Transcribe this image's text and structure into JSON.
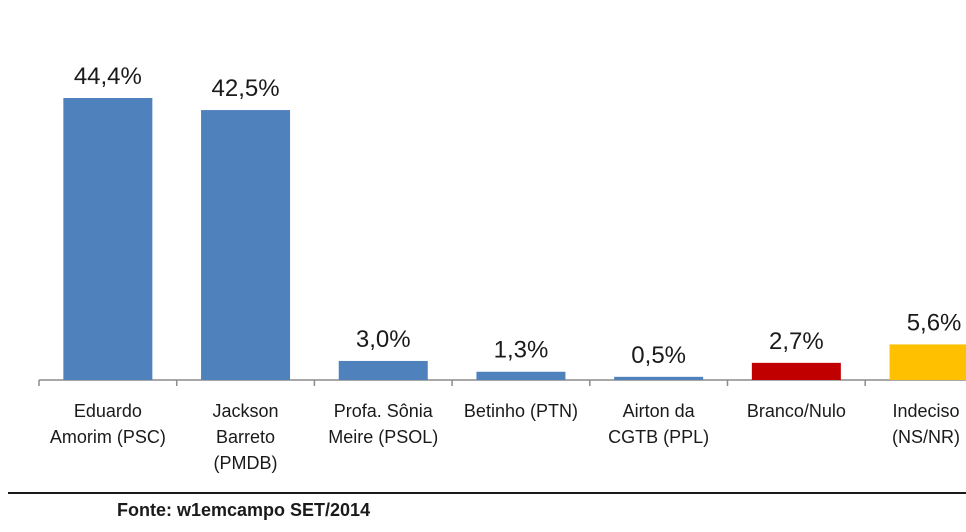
{
  "chart_data": {
    "type": "bar",
    "categories": [
      [
        "Eduardo",
        "Amorim (PSC)"
      ],
      [
        "Jackson",
        "Barreto",
        "(PMDB)"
      ],
      [
        "Profa. Sônia",
        "Meire (PSOL)"
      ],
      [
        "Betinho (PTN)"
      ],
      [
        "Airton da",
        "CGTB (PPL)"
      ],
      [
        "Branco/Nulo"
      ],
      [
        "Indeciso",
        "(NS/NR)"
      ]
    ],
    "values": [
      44.4,
      42.5,
      3.0,
      1.3,
      0.5,
      2.7,
      5.6
    ],
    "value_labels": [
      "44,4%",
      "42,5%",
      "3,0%",
      "1,3%",
      "0,5%",
      "2,7%",
      "5,6%"
    ],
    "colors": [
      "#4f81bd",
      "#4f81bd",
      "#4f81bd",
      "#4f81bd",
      "#4f81bd",
      "#c00000",
      "#ffc000"
    ],
    "ylim": [
      0,
      50
    ],
    "grid": false,
    "legend": "none"
  },
  "source": "Fonte: w1emcampo SET/2014"
}
